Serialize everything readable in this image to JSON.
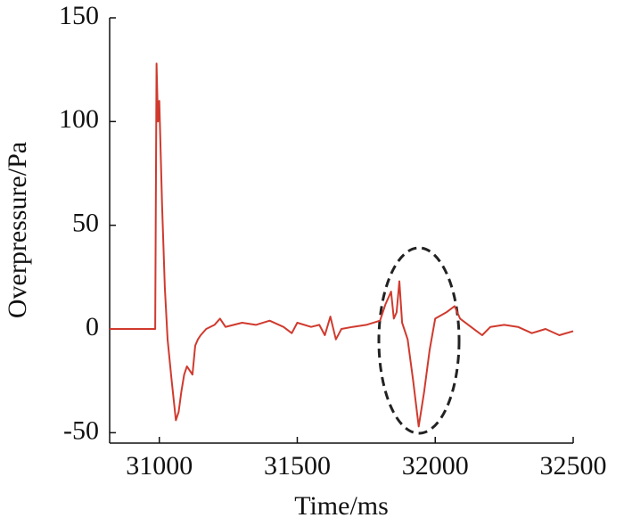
{
  "chart_data": {
    "type": "line",
    "x_label": "Time/ms",
    "y_label": "Overpressure/Pa",
    "xlim": [
      30820,
      32500
    ],
    "ylim": [
      -55,
      150
    ],
    "xticks": [
      31000,
      31500,
      32000,
      32500
    ],
    "yticks": [
      -50,
      0,
      50,
      100,
      150
    ],
    "series": [
      {
        "color": "#d03a2e",
        "x": [
          30820,
          30985,
          30990,
          30995,
          31000,
          31010,
          31020,
          31030,
          31045,
          31060,
          31070,
          31080,
          31090,
          31100,
          31110,
          31120,
          31130,
          31140,
          31150,
          31170,
          31200,
          31220,
          31240,
          31300,
          31350,
          31400,
          31450,
          31480,
          31500,
          31550,
          31580,
          31600,
          31620,
          31640,
          31660,
          31700,
          31750,
          31800,
          31820,
          31840,
          31850,
          31860,
          31870,
          31880,
          31900,
          31920,
          31940,
          31960,
          31980,
          32000,
          32040,
          32070,
          32090,
          32120,
          32150,
          32170,
          32200,
          32250,
          32300,
          32350,
          32400,
          32450,
          32500
        ],
        "values": [
          0,
          0,
          128,
          100,
          110,
          60,
          20,
          -5,
          -25,
          -44,
          -40,
          -30,
          -22,
          -18,
          -20,
          -22,
          -8,
          -5,
          -3,
          0,
          2,
          5,
          1,
          3,
          2,
          4,
          1,
          -2,
          3,
          1,
          2,
          -3,
          6,
          -5,
          0,
          1,
          2,
          4,
          12,
          18,
          5,
          8,
          23,
          3,
          -5,
          -25,
          -47,
          -30,
          -10,
          5,
          8,
          11,
          5,
          2,
          -1,
          -3,
          1,
          2,
          1,
          -2,
          0,
          -3,
          -1
        ]
      }
    ]
  }
}
